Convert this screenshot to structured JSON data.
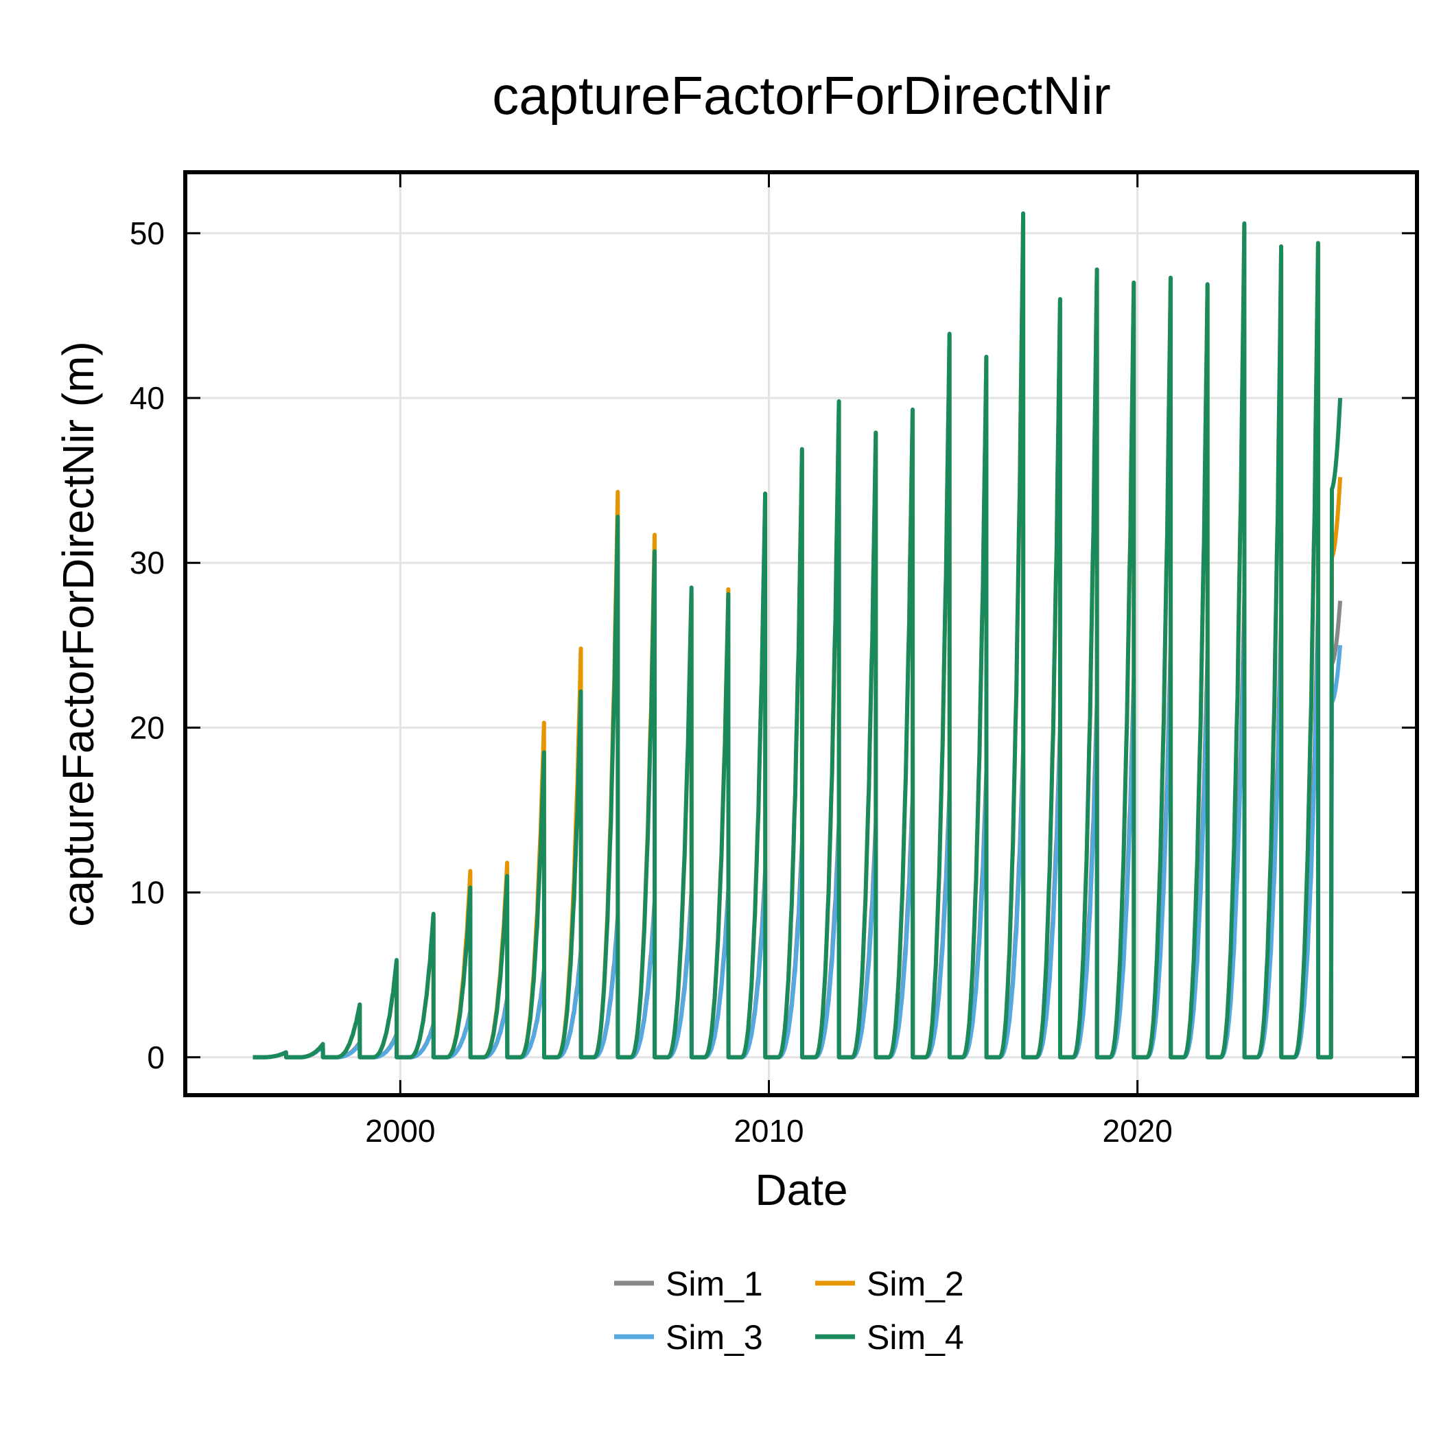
{
  "chart_data": {
    "type": "line",
    "title": "captureFactorForDirectNir",
    "xlabel": "Date",
    "ylabel": "captureFactorForDirectNir (m)",
    "xlim": [
      "1994-03-01",
      "2027-08-01"
    ],
    "ylim": [
      -2.3,
      53.7
    ],
    "x_ticks": [
      "2000",
      "2010",
      "2020"
    ],
    "y_ticks": [
      0,
      10,
      20,
      30,
      40,
      50
    ],
    "grid": true,
    "legend_position": "bottom-center",
    "series_end": "2025-07",
    "growing_season": {
      "start_month": 4,
      "harvest_month": 11,
      "harvest_day": 25
    },
    "series": [
      {
        "name": "Sim_1",
        "color": "#888888",
        "end_value": 27.7,
        "annual_peaks": [
          {
            "year": 1996,
            "value": 0.3
          },
          {
            "year": 1997,
            "value": 0.8
          },
          {
            "year": 1998,
            "value": 0.9
          },
          {
            "year": 1999,
            "value": 1.4
          },
          {
            "year": 2000,
            "value": 2.0
          },
          {
            "year": 2001,
            "value": 2.8
          },
          {
            "year": 2002,
            "value": 3.6
          },
          {
            "year": 2003,
            "value": 5.3
          },
          {
            "year": 2004,
            "value": 6.5
          },
          {
            "year": 2005,
            "value": 8.6
          },
          {
            "year": 2006,
            "value": 9.5
          },
          {
            "year": 2007,
            "value": 10.0
          },
          {
            "year": 2008,
            "value": 10.2
          },
          {
            "year": 2009,
            "value": 11.3
          },
          {
            "year": 2010,
            "value": 13.0
          },
          {
            "year": 2011,
            "value": 14.3
          },
          {
            "year": 2012,
            "value": 14.2
          },
          {
            "year": 2013,
            "value": 15.9
          },
          {
            "year": 2014,
            "value": 16.2
          },
          {
            "year": 2015,
            "value": 17.3
          },
          {
            "year": 2016,
            "value": 18.7
          },
          {
            "year": 2017,
            "value": 20.0
          },
          {
            "year": 2018,
            "value": 21.6
          },
          {
            "year": 2019,
            "value": 23.1
          },
          {
            "year": 2020,
            "value": 25.2
          },
          {
            "year": 2021,
            "value": 24.6
          },
          {
            "year": 2022,
            "value": 28.0
          },
          {
            "year": 2023,
            "value": 27.1
          },
          {
            "year": 2024,
            "value": 27.6
          }
        ]
      },
      {
        "name": "Sim_2",
        "color": "#e69500",
        "end_value": 35.2,
        "annual_peaks": [
          {
            "year": 1996,
            "value": 0.3
          },
          {
            "year": 1997,
            "value": 0.8
          },
          {
            "year": 1998,
            "value": 3.2
          },
          {
            "year": 1999,
            "value": 5.8
          },
          {
            "year": 2000,
            "value": 8.6
          },
          {
            "year": 2001,
            "value": 11.3
          },
          {
            "year": 2002,
            "value": 11.8
          },
          {
            "year": 2003,
            "value": 20.3
          },
          {
            "year": 2004,
            "value": 24.8
          },
          {
            "year": 2005,
            "value": 34.3
          },
          {
            "year": 2006,
            "value": 31.7
          },
          {
            "year": 2007,
            "value": 28.0
          },
          {
            "year": 2008,
            "value": 28.4
          },
          {
            "year": 2009,
            "value": 34.2
          },
          {
            "year": 2010,
            "value": 36.8
          },
          {
            "year": 2011,
            "value": 39.7
          },
          {
            "year": 2012,
            "value": 37.9
          },
          {
            "year": 2013,
            "value": 39.2
          },
          {
            "year": 2014,
            "value": 43.8
          },
          {
            "year": 2015,
            "value": 42.5
          },
          {
            "year": 2016,
            "value": 51.1
          },
          {
            "year": 2017,
            "value": 45.9
          },
          {
            "year": 2018,
            "value": 47.8
          },
          {
            "year": 2019,
            "value": 47.0
          },
          {
            "year": 2020,
            "value": 47.3
          },
          {
            "year": 2021,
            "value": 46.9
          },
          {
            "year": 2022,
            "value": 50.5
          },
          {
            "year": 2023,
            "value": 49.2
          },
          {
            "year": 2024,
            "value": 49.4
          }
        ]
      },
      {
        "name": "Sim_3",
        "color": "#56a8e0",
        "end_value": 25.0,
        "annual_peaks": [
          {
            "year": 1996,
            "value": 0.3
          },
          {
            "year": 1997,
            "value": 0.7
          },
          {
            "year": 1998,
            "value": 0.8
          },
          {
            "year": 1999,
            "value": 1.3
          },
          {
            "year": 2000,
            "value": 1.9
          },
          {
            "year": 2001,
            "value": 2.7
          },
          {
            "year": 2002,
            "value": 3.4
          },
          {
            "year": 2003,
            "value": 5.1
          },
          {
            "year": 2004,
            "value": 6.2
          },
          {
            "year": 2005,
            "value": 8.2
          },
          {
            "year": 2006,
            "value": 9.0
          },
          {
            "year": 2007,
            "value": 9.5
          },
          {
            "year": 2008,
            "value": 9.8
          },
          {
            "year": 2009,
            "value": 10.6
          },
          {
            "year": 2010,
            "value": 12.2
          },
          {
            "year": 2011,
            "value": 13.4
          },
          {
            "year": 2012,
            "value": 13.3
          },
          {
            "year": 2013,
            "value": 14.8
          },
          {
            "year": 2014,
            "value": 15.3
          },
          {
            "year": 2015,
            "value": 16.2
          },
          {
            "year": 2016,
            "value": 17.6
          },
          {
            "year": 2017,
            "value": 18.8
          },
          {
            "year": 2018,
            "value": 20.3
          },
          {
            "year": 2019,
            "value": 21.9
          },
          {
            "year": 2020,
            "value": 23.8
          },
          {
            "year": 2021,
            "value": 23.0
          },
          {
            "year": 2022,
            "value": 26.0
          },
          {
            "year": 2023,
            "value": 25.3
          },
          {
            "year": 2024,
            "value": 25.7
          }
        ]
      },
      {
        "name": "Sim_4",
        "color": "#1a8a5c",
        "end_value": 40.0,
        "annual_peaks": [
          {
            "year": 1996,
            "value": 0.3
          },
          {
            "year": 1997,
            "value": 0.8
          },
          {
            "year": 1998,
            "value": 3.2
          },
          {
            "year": 1999,
            "value": 5.9
          },
          {
            "year": 2000,
            "value": 8.7
          },
          {
            "year": 2001,
            "value": 10.3
          },
          {
            "year": 2002,
            "value": 11.0
          },
          {
            "year": 2003,
            "value": 18.5
          },
          {
            "year": 2004,
            "value": 22.2
          },
          {
            "year": 2005,
            "value": 32.8
          },
          {
            "year": 2006,
            "value": 30.7
          },
          {
            "year": 2007,
            "value": 28.5
          },
          {
            "year": 2008,
            "value": 28.1
          },
          {
            "year": 2009,
            "value": 34.2
          },
          {
            "year": 2010,
            "value": 36.9
          },
          {
            "year": 2011,
            "value": 39.8
          },
          {
            "year": 2012,
            "value": 37.9
          },
          {
            "year": 2013,
            "value": 39.3
          },
          {
            "year": 2014,
            "value": 43.9
          },
          {
            "year": 2015,
            "value": 42.5
          },
          {
            "year": 2016,
            "value": 51.2
          },
          {
            "year": 2017,
            "value": 46.0
          },
          {
            "year": 2018,
            "value": 47.8
          },
          {
            "year": 2019,
            "value": 47.0
          },
          {
            "year": 2020,
            "value": 47.3
          },
          {
            "year": 2021,
            "value": 46.9
          },
          {
            "year": 2022,
            "value": 50.6
          },
          {
            "year": 2023,
            "value": 49.2
          },
          {
            "year": 2024,
            "value": 49.4
          }
        ]
      }
    ]
  },
  "legend": {
    "items": [
      {
        "label": "Sim_1",
        "color": "#888888"
      },
      {
        "label": "Sim_2",
        "color": "#e69500"
      },
      {
        "label": "Sim_3",
        "color": "#56a8e0"
      },
      {
        "label": "Sim_4",
        "color": "#1a8a5c"
      }
    ]
  }
}
